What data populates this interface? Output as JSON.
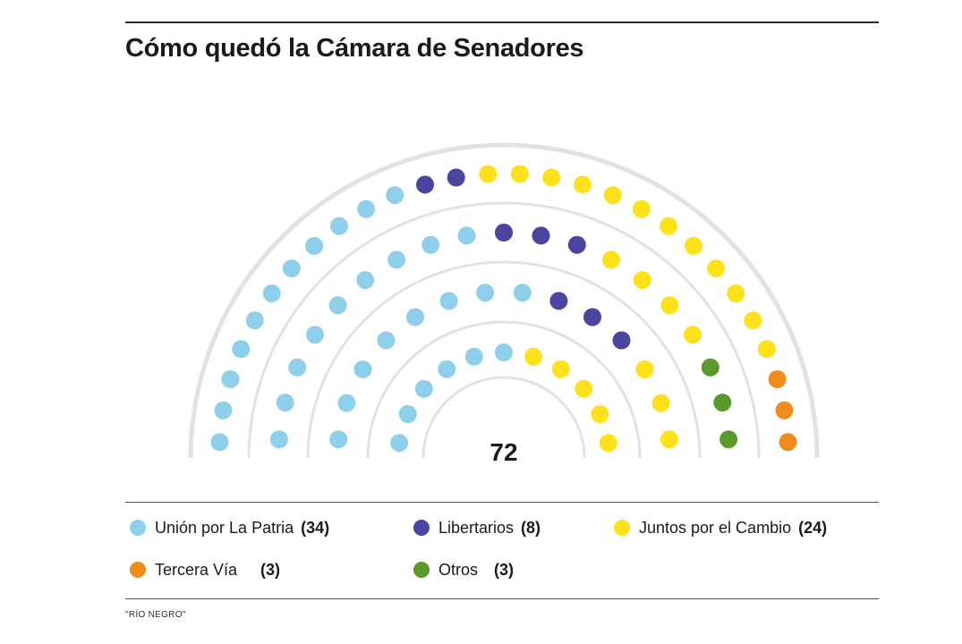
{
  "title": "Cómo quedó la Cámara de Senadores",
  "source": "\"RÍO NEGRO\"",
  "chart_data": {
    "type": "parliament",
    "total": 72,
    "total_label": "72",
    "seats_per_row": [
      11,
      14,
      19,
      28
    ],
    "series": [
      {
        "key": "up",
        "name": "Unión por La Patria",
        "value": 34,
        "count_label": "(34)",
        "color": "#8fcfea"
      },
      {
        "key": "lib",
        "name": "Libertarios",
        "value": 8,
        "count_label": "(8)",
        "color": "#4b44a0"
      },
      {
        "key": "jxc",
        "name": "Juntos por el Cambio",
        "value": 24,
        "count_label": "(24)",
        "color": "#fde11a"
      },
      {
        "key": "otr",
        "name": "Otros",
        "value": 3,
        "count_label": "(3)",
        "color": "#5a9a2c"
      },
      {
        "key": "ter",
        "name": "Tercera Vía",
        "value": 3,
        "count_label": "(3)",
        "color": "#f08c1c"
      }
    ],
    "seat_assignment": {
      "row1": {
        "up": 6,
        "lib": 0,
        "jxc": 5,
        "otr": 0,
        "ter": 0
      },
      "row2": {
        "up": 8,
        "lib": 3,
        "jxc": 3,
        "otr": 0,
        "ter": 0
      },
      "row3": {
        "up": 9,
        "lib": 3,
        "jxc": 4,
        "otr": 3,
        "ter": 0
      },
      "row4": {
        "up": 11,
        "lib": 2,
        "jxc": 12,
        "otr": 0,
        "ter": 3
      }
    }
  }
}
